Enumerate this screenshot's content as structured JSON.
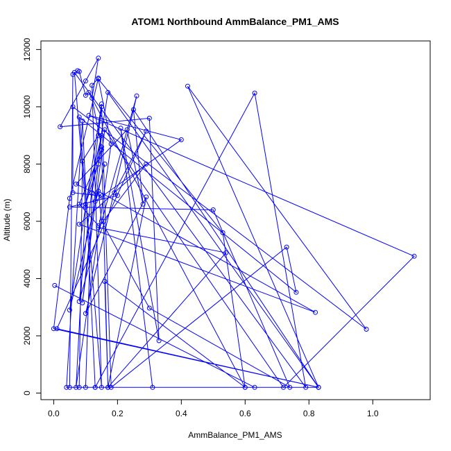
{
  "chart_data": {
    "type": "line",
    "title": "ATOM1 Northbound AmmBalance_PM1_AMS",
    "xlabel": "AmmBalance_PM1_AMS",
    "ylabel": "Altitude (m)",
    "xlim": [
      -0.04,
      1.18
    ],
    "ylim": [
      -230,
      12300
    ],
    "xticks": [
      0.0,
      0.2,
      0.4,
      0.6,
      0.8,
      1.0
    ],
    "xtick_labels": [
      "0.0",
      "0.2",
      "0.4",
      "0.6",
      "0.8",
      "1.0"
    ],
    "yticks": [
      0,
      2000,
      4000,
      6000,
      8000,
      10000,
      12000
    ],
    "ytick_labels": [
      "0",
      "2000",
      "4000",
      "6000",
      "8000",
      "10000",
      "12000"
    ],
    "grid": false,
    "markers": "open-circle",
    "color": "#0000ff",
    "series": [
      {
        "x": [
          0.003,
          0.63,
          0.6,
          0.16,
          0.17,
          0.15,
          0.12,
          0.14,
          0.1,
          0.02,
          0.3,
          0.33,
          0.21,
          0.31,
          0.05,
          0.06,
          0.075,
          0.08,
          0.1,
          0.11,
          0.6,
          0.53,
          0.14,
          0.18,
          0.07,
          0.1,
          0.065,
          0.79,
          0.63,
          0.13,
          0.08,
          0.09,
          0.14,
          0.15,
          0.18,
          0.73,
          0.76,
          0.08,
          0.15,
          0.12,
          0.14,
          0.05,
          0.0,
          0.83,
          0.42,
          0.98,
          0.06,
          0.06,
          0.15,
          0.07,
          0.23,
          0.28,
          0.25,
          0.83,
          0.17,
          0.12,
          0.1,
          0.04,
          0.09,
          0.13,
          0.83,
          0.01,
          0.29,
          0.19,
          0.2,
          0.05,
          0.5,
          0.74,
          0.3,
          0.15,
          0.14,
          0.82,
          0.08,
          0.29,
          0.14,
          0.54,
          0.17,
          0.29,
          0.1,
          0.26,
          0.08,
          0.15,
          0.05,
          0.16,
          0.13,
          0.4,
          0.11,
          1.13,
          0.72,
          0.16,
          0.09,
          0.15,
          0.1,
          0.14,
          0.15,
          0.08,
          0.14
        ],
        "y": [
          3760,
          200,
          200,
          3900,
          200,
          8600,
          10300,
          11700,
          10900,
          9300,
          9600,
          1830,
          9250,
          200,
          200,
          11130,
          11260,
          11230,
          10400,
          10500,
          200,
          5600,
          10970,
          8700,
          200,
          6500,
          11200,
          200,
          10480,
          200,
          200,
          8100,
          9000,
          10000,
          200,
          5100,
          3520,
          9640,
          200,
          10750,
          11000,
          6800,
          2250,
          200,
          10720,
          2230,
          10000,
          7000,
          6880,
          7300,
          9200,
          6600,
          9900,
          200,
          10500,
          7000,
          200,
          200,
          9500,
          200,
          200,
          2250,
          9150,
          7000,
          6900,
          6500,
          6400,
          200,
          2970,
          6000,
          7050,
          2820,
          5900,
          8000,
          5780,
          4900,
          200,
          6850,
          2780,
          10380,
          3200,
          10100,
          2900,
          8000,
          6700,
          8850,
          9700,
          4780,
          200,
          9200,
          3150,
          9000,
          6600,
          8000,
          8500,
          6600,
          5850
        ]
      }
    ]
  }
}
